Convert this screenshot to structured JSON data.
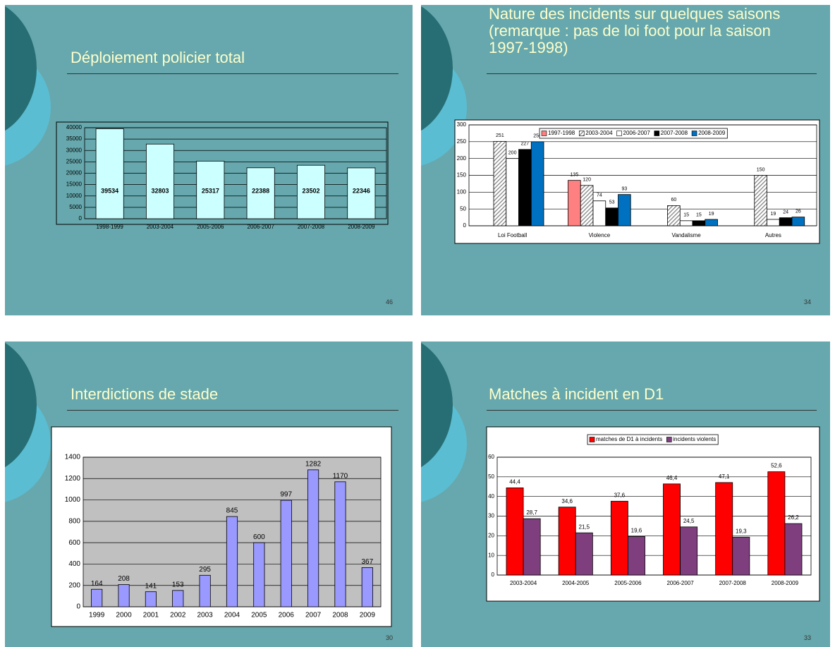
{
  "chart_data": [
    {
      "type": "bar",
      "title": "Déploiement policier total",
      "page_number": "46",
      "categories": [
        "1998-1999",
        "2003-2004",
        "2005-2006",
        "2006-2007",
        "2007-2008",
        "2008-2009"
      ],
      "values": [
        39534,
        32803,
        25317,
        22388,
        23502,
        22346
      ],
      "color": "#ccffff",
      "ylim": [
        0,
        40000
      ],
      "yticks": [
        0,
        5000,
        10000,
        15000,
        20000,
        25000,
        30000,
        35000,
        40000
      ],
      "grid": true
    },
    {
      "type": "bar",
      "title": "Nature des incidents sur quelques saisons (remarque : pas de loi foot pour la saison 1997-1998)",
      "page_number": "34",
      "categories": [
        "Loi Football",
        "Violence",
        "Vandalisme",
        "Autres"
      ],
      "series": [
        {
          "name": "1997-1998",
          "color": "#ff8080",
          "values": [
            null,
            135,
            null,
            null
          ]
        },
        {
          "name": "2003-2004",
          "color": "#808080",
          "hatch": true,
          "values": [
            251,
            120,
            60,
            150
          ]
        },
        {
          "name": "2006-2007",
          "color": "#ffffff",
          "values": [
            200,
            74,
            15,
            19
          ]
        },
        {
          "name": "2007-2008",
          "color": "#000000",
          "values": [
            227,
            53,
            15,
            24
          ]
        },
        {
          "name": "2008-2009",
          "color": "#0070c0",
          "values": [
            250,
            93,
            19,
            26
          ]
        }
      ],
      "ylim": [
        0,
        300
      ],
      "yticks": [
        0,
        50,
        100,
        150,
        200,
        250,
        300
      ],
      "grid": true,
      "legend": "top"
    },
    {
      "type": "bar",
      "title": "Interdictions de stade",
      "page_number": "30",
      "categories": [
        "1999",
        "2000",
        "2001",
        "2002",
        "2003",
        "2004",
        "2005",
        "2006",
        "2007",
        "2008",
        "2009"
      ],
      "values": [
        164,
        208,
        141,
        153,
        295,
        845,
        600,
        997,
        1282,
        1170,
        367
      ],
      "color": "#9999ff",
      "ylim": [
        0,
        1400
      ],
      "yticks": [
        0,
        200,
        400,
        600,
        800,
        1000,
        1200,
        1400
      ],
      "grid": true
    },
    {
      "type": "bar",
      "title": "Matches à incident en D1",
      "page_number": "33",
      "categories": [
        "2003-2004",
        "2004-2005",
        "2005-2006",
        "2006-2007",
        "2007-2008",
        "2008-2009"
      ],
      "series": [
        {
          "name": "matches de D1 à incidents",
          "color": "#ff0000",
          "values": [
            44.4,
            34.6,
            37.6,
            46.4,
            47.1,
            52.6
          ],
          "value_labels": [
            "44,4",
            "34,6",
            "37,6",
            "46,4",
            "47,1",
            "52,6"
          ]
        },
        {
          "name": "incidents violents",
          "color": "#7f3f7f",
          "values": [
            28.7,
            21.5,
            19.6,
            24.5,
            19.3,
            26.2
          ],
          "value_labels": [
            "28,7",
            "21,5",
            "19,6",
            "24,5",
            "19,3",
            "26,2"
          ]
        }
      ],
      "ylim": [
        0,
        60
      ],
      "yticks": [
        0,
        10,
        20,
        30,
        40,
        50,
        60
      ],
      "grid": true,
      "legend": "top"
    }
  ]
}
